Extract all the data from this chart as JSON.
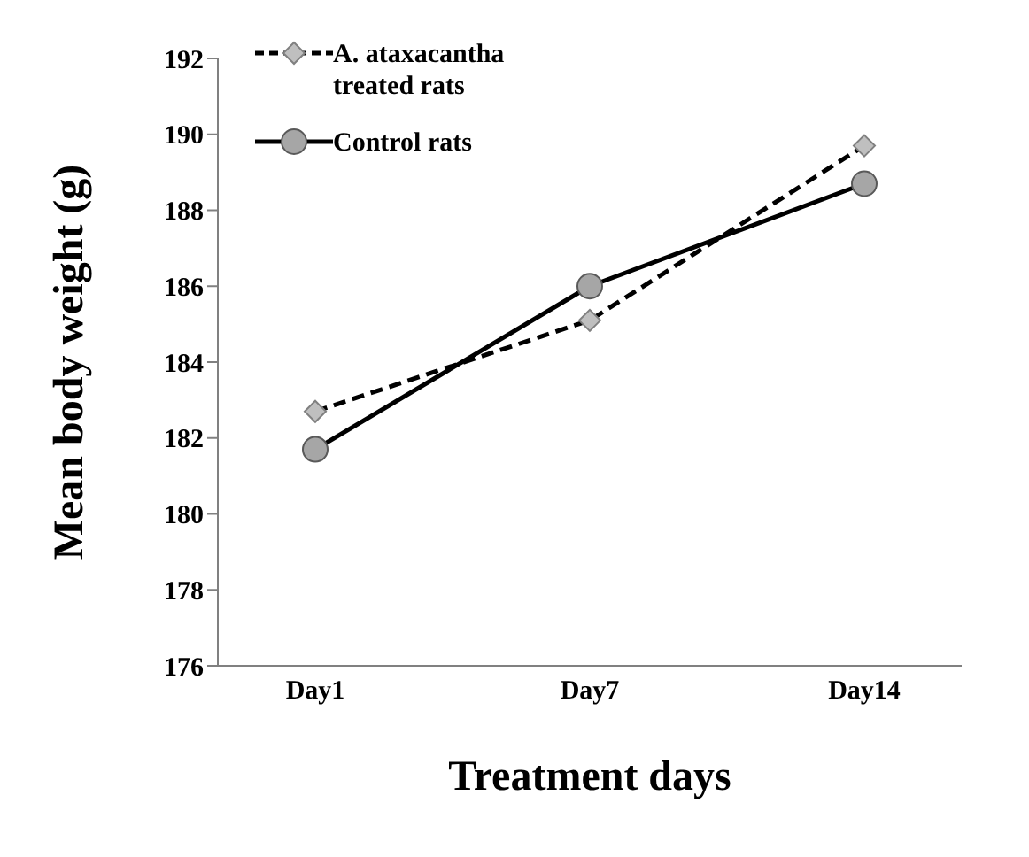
{
  "chart_data": {
    "type": "line",
    "xlabel": "Treatment days",
    "ylabel": "Mean body weight (g)",
    "categories": [
      "Day1",
      "Day7",
      "Day14"
    ],
    "series": [
      {
        "name": "A. ataxacantha treated rats",
        "color": "#000000",
        "values": [
          182.7,
          185.1,
          189.7
        ],
        "marker": "diamond",
        "line_style": "dashed"
      },
      {
        "name": "Control rats",
        "color": "#000000",
        "values": [
          181.7,
          186.0,
          188.7
        ],
        "marker": "circle",
        "line_style": "solid"
      }
    ],
    "ylim": [
      176,
      192
    ],
    "yticks": [
      176,
      178,
      180,
      182,
      184,
      186,
      188,
      190,
      192
    ],
    "grid": false,
    "legend": "top left"
  }
}
